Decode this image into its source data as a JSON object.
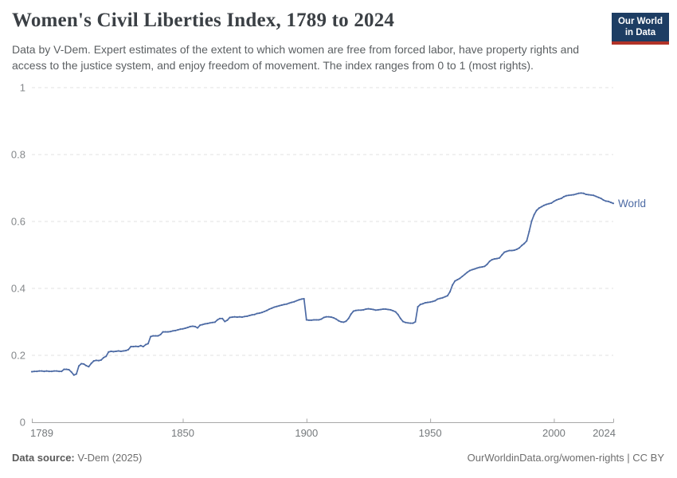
{
  "header": {
    "title": "Women's Civil Liberties Index, 1789 to 2024",
    "subtitle": "Data by V-Dem. Expert estimates of the extent to which women are free from forced labor, have property rights and access to the justice system, and enjoy freedom of movement. The index ranges from 0 to 1 (most rights).",
    "logo": {
      "line1": "Our World",
      "line2": "in Data",
      "bg_color": "#1d3d63",
      "bar_color": "#b13328"
    }
  },
  "chart_data": {
    "type": "line",
    "title": "Women's Civil Liberties Index, 1789 to 2024",
    "xlabel": "",
    "ylabel": "",
    "xlim": [
      1789,
      2024
    ],
    "ylim": [
      0,
      1
    ],
    "x_ticks": [
      1789,
      1850,
      1900,
      1950,
      2000,
      2024
    ],
    "y_ticks": [
      0,
      0.2,
      0.4,
      0.6,
      0.8,
      1
    ],
    "grid": "horizontal-dashed",
    "legend_position": "end-of-line",
    "axis_color": "#a8a8a8",
    "grid_color": "#e0e0e0",
    "tick_label_color": "#85888b",
    "series": [
      {
        "name": "World",
        "color": "#4c6aa4",
        "points": [
          [
            1789,
            0.151
          ],
          [
            1790,
            0.152
          ],
          [
            1791,
            0.152
          ],
          [
            1792,
            0.153
          ],
          [
            1793,
            0.153
          ],
          [
            1794,
            0.152
          ],
          [
            1795,
            0.153
          ],
          [
            1796,
            0.152
          ],
          [
            1797,
            0.152
          ],
          [
            1798,
            0.153
          ],
          [
            1799,
            0.153
          ],
          [
            1800,
            0.152
          ],
          [
            1801,
            0.152
          ],
          [
            1802,
            0.158
          ],
          [
            1803,
            0.158
          ],
          [
            1804,
            0.157
          ],
          [
            1805,
            0.15
          ],
          [
            1806,
            0.141
          ],
          [
            1807,
            0.144
          ],
          [
            1808,
            0.168
          ],
          [
            1809,
            0.175
          ],
          [
            1810,
            0.174
          ],
          [
            1811,
            0.169
          ],
          [
            1812,
            0.166
          ],
          [
            1813,
            0.176
          ],
          [
            1814,
            0.183
          ],
          [
            1815,
            0.185
          ],
          [
            1816,
            0.184
          ],
          [
            1817,
            0.186
          ],
          [
            1818,
            0.193
          ],
          [
            1819,
            0.197
          ],
          [
            1820,
            0.21
          ],
          [
            1821,
            0.212
          ],
          [
            1822,
            0.211
          ],
          [
            1823,
            0.212
          ],
          [
            1824,
            0.213
          ],
          [
            1825,
            0.212
          ],
          [
            1826,
            0.213
          ],
          [
            1827,
            0.214
          ],
          [
            1828,
            0.217
          ],
          [
            1829,
            0.226
          ],
          [
            1830,
            0.226
          ],
          [
            1831,
            0.227
          ],
          [
            1832,
            0.226
          ],
          [
            1833,
            0.229
          ],
          [
            1834,
            0.226
          ],
          [
            1835,
            0.232
          ],
          [
            1836,
            0.235
          ],
          [
            1837,
            0.256
          ],
          [
            1838,
            0.258
          ],
          [
            1839,
            0.258
          ],
          [
            1840,
            0.258
          ],
          [
            1841,
            0.262
          ],
          [
            1842,
            0.27
          ],
          [
            1843,
            0.27
          ],
          [
            1844,
            0.27
          ],
          [
            1845,
            0.271
          ],
          [
            1846,
            0.273
          ],
          [
            1847,
            0.274
          ],
          [
            1848,
            0.276
          ],
          [
            1849,
            0.278
          ],
          [
            1850,
            0.279
          ],
          [
            1851,
            0.281
          ],
          [
            1852,
            0.283
          ],
          [
            1853,
            0.286
          ],
          [
            1854,
            0.287
          ],
          [
            1855,
            0.286
          ],
          [
            1856,
            0.282
          ],
          [
            1857,
            0.29
          ],
          [
            1858,
            0.292
          ],
          [
            1859,
            0.294
          ],
          [
            1860,
            0.295
          ],
          [
            1861,
            0.297
          ],
          [
            1862,
            0.298
          ],
          [
            1863,
            0.299
          ],
          [
            1864,
            0.306
          ],
          [
            1865,
            0.31
          ],
          [
            1866,
            0.31
          ],
          [
            1867,
            0.301
          ],
          [
            1868,
            0.305
          ],
          [
            1869,
            0.313
          ],
          [
            1870,
            0.314
          ],
          [
            1871,
            0.315
          ],
          [
            1872,
            0.314
          ],
          [
            1873,
            0.315
          ],
          [
            1874,
            0.314
          ],
          [
            1875,
            0.316
          ],
          [
            1876,
            0.317
          ],
          [
            1877,
            0.319
          ],
          [
            1878,
            0.321
          ],
          [
            1879,
            0.322
          ],
          [
            1880,
            0.325
          ],
          [
            1881,
            0.326
          ],
          [
            1882,
            0.328
          ],
          [
            1883,
            0.331
          ],
          [
            1884,
            0.334
          ],
          [
            1885,
            0.338
          ],
          [
            1886,
            0.341
          ],
          [
            1887,
            0.344
          ],
          [
            1888,
            0.346
          ],
          [
            1889,
            0.348
          ],
          [
            1890,
            0.35
          ],
          [
            1891,
            0.352
          ],
          [
            1892,
            0.353
          ],
          [
            1893,
            0.356
          ],
          [
            1894,
            0.358
          ],
          [
            1895,
            0.36
          ],
          [
            1896,
            0.363
          ],
          [
            1897,
            0.366
          ],
          [
            1898,
            0.368
          ],
          [
            1899,
            0.369
          ],
          [
            1900,
            0.306
          ],
          [
            1901,
            0.305
          ],
          [
            1902,
            0.305
          ],
          [
            1903,
            0.306
          ],
          [
            1904,
            0.306
          ],
          [
            1905,
            0.306
          ],
          [
            1906,
            0.308
          ],
          [
            1907,
            0.313
          ],
          [
            1908,
            0.315
          ],
          [
            1909,
            0.315
          ],
          [
            1910,
            0.314
          ],
          [
            1911,
            0.312
          ],
          [
            1912,
            0.308
          ],
          [
            1913,
            0.303
          ],
          [
            1914,
            0.3
          ],
          [
            1915,
            0.299
          ],
          [
            1916,
            0.302
          ],
          [
            1917,
            0.31
          ],
          [
            1918,
            0.323
          ],
          [
            1919,
            0.332
          ],
          [
            1920,
            0.334
          ],
          [
            1921,
            0.335
          ],
          [
            1922,
            0.335
          ],
          [
            1923,
            0.336
          ],
          [
            1924,
            0.338
          ],
          [
            1925,
            0.339
          ],
          [
            1926,
            0.338
          ],
          [
            1927,
            0.337
          ],
          [
            1928,
            0.335
          ],
          [
            1929,
            0.336
          ],
          [
            1930,
            0.337
          ],
          [
            1931,
            0.338
          ],
          [
            1932,
            0.338
          ],
          [
            1933,
            0.337
          ],
          [
            1934,
            0.336
          ],
          [
            1935,
            0.333
          ],
          [
            1936,
            0.33
          ],
          [
            1937,
            0.322
          ],
          [
            1938,
            0.31
          ],
          [
            1939,
            0.301
          ],
          [
            1940,
            0.298
          ],
          [
            1941,
            0.297
          ],
          [
            1942,
            0.296
          ],
          [
            1943,
            0.296
          ],
          [
            1944,
            0.3
          ],
          [
            1945,
            0.345
          ],
          [
            1946,
            0.352
          ],
          [
            1947,
            0.354
          ],
          [
            1948,
            0.357
          ],
          [
            1949,
            0.358
          ],
          [
            1950,
            0.359
          ],
          [
            1951,
            0.361
          ],
          [
            1952,
            0.363
          ],
          [
            1953,
            0.368
          ],
          [
            1954,
            0.37
          ],
          [
            1955,
            0.372
          ],
          [
            1956,
            0.375
          ],
          [
            1957,
            0.378
          ],
          [
            1958,
            0.39
          ],
          [
            1959,
            0.41
          ],
          [
            1960,
            0.422
          ],
          [
            1961,
            0.426
          ],
          [
            1962,
            0.43
          ],
          [
            1963,
            0.436
          ],
          [
            1964,
            0.442
          ],
          [
            1965,
            0.448
          ],
          [
            1966,
            0.453
          ],
          [
            1967,
            0.456
          ],
          [
            1968,
            0.458
          ],
          [
            1969,
            0.461
          ],
          [
            1970,
            0.463
          ],
          [
            1971,
            0.464
          ],
          [
            1972,
            0.466
          ],
          [
            1973,
            0.472
          ],
          [
            1974,
            0.481
          ],
          [
            1975,
            0.486
          ],
          [
            1976,
            0.488
          ],
          [
            1977,
            0.489
          ],
          [
            1978,
            0.491
          ],
          [
            1979,
            0.5
          ],
          [
            1980,
            0.508
          ],
          [
            1981,
            0.511
          ],
          [
            1982,
            0.513
          ],
          [
            1983,
            0.513
          ],
          [
            1984,
            0.514
          ],
          [
            1985,
            0.517
          ],
          [
            1986,
            0.521
          ],
          [
            1987,
            0.528
          ],
          [
            1988,
            0.534
          ],
          [
            1989,
            0.542
          ],
          [
            1990,
            0.57
          ],
          [
            1991,
            0.601
          ],
          [
            1992,
            0.62
          ],
          [
            1993,
            0.633
          ],
          [
            1994,
            0.64
          ],
          [
            1995,
            0.644
          ],
          [
            1996,
            0.648
          ],
          [
            1997,
            0.651
          ],
          [
            1998,
            0.653
          ],
          [
            1999,
            0.655
          ],
          [
            2000,
            0.66
          ],
          [
            2001,
            0.664
          ],
          [
            2002,
            0.667
          ],
          [
            2003,
            0.669
          ],
          [
            2004,
            0.674
          ],
          [
            2005,
            0.677
          ],
          [
            2006,
            0.678
          ],
          [
            2007,
            0.679
          ],
          [
            2008,
            0.68
          ],
          [
            2009,
            0.682
          ],
          [
            2010,
            0.684
          ],
          [
            2011,
            0.685
          ],
          [
            2012,
            0.684
          ],
          [
            2013,
            0.681
          ],
          [
            2014,
            0.68
          ],
          [
            2015,
            0.679
          ],
          [
            2016,
            0.678
          ],
          [
            2017,
            0.675
          ],
          [
            2018,
            0.672
          ],
          [
            2019,
            0.669
          ],
          [
            2020,
            0.664
          ],
          [
            2021,
            0.661
          ],
          [
            2022,
            0.66
          ],
          [
            2023,
            0.657
          ],
          [
            2024,
            0.654
          ]
        ]
      }
    ]
  },
  "footer": {
    "source_label": "Data source:",
    "source_value": " V-Dem (2025)",
    "credit": "OurWorldinData.org/women-rights | CC BY"
  }
}
